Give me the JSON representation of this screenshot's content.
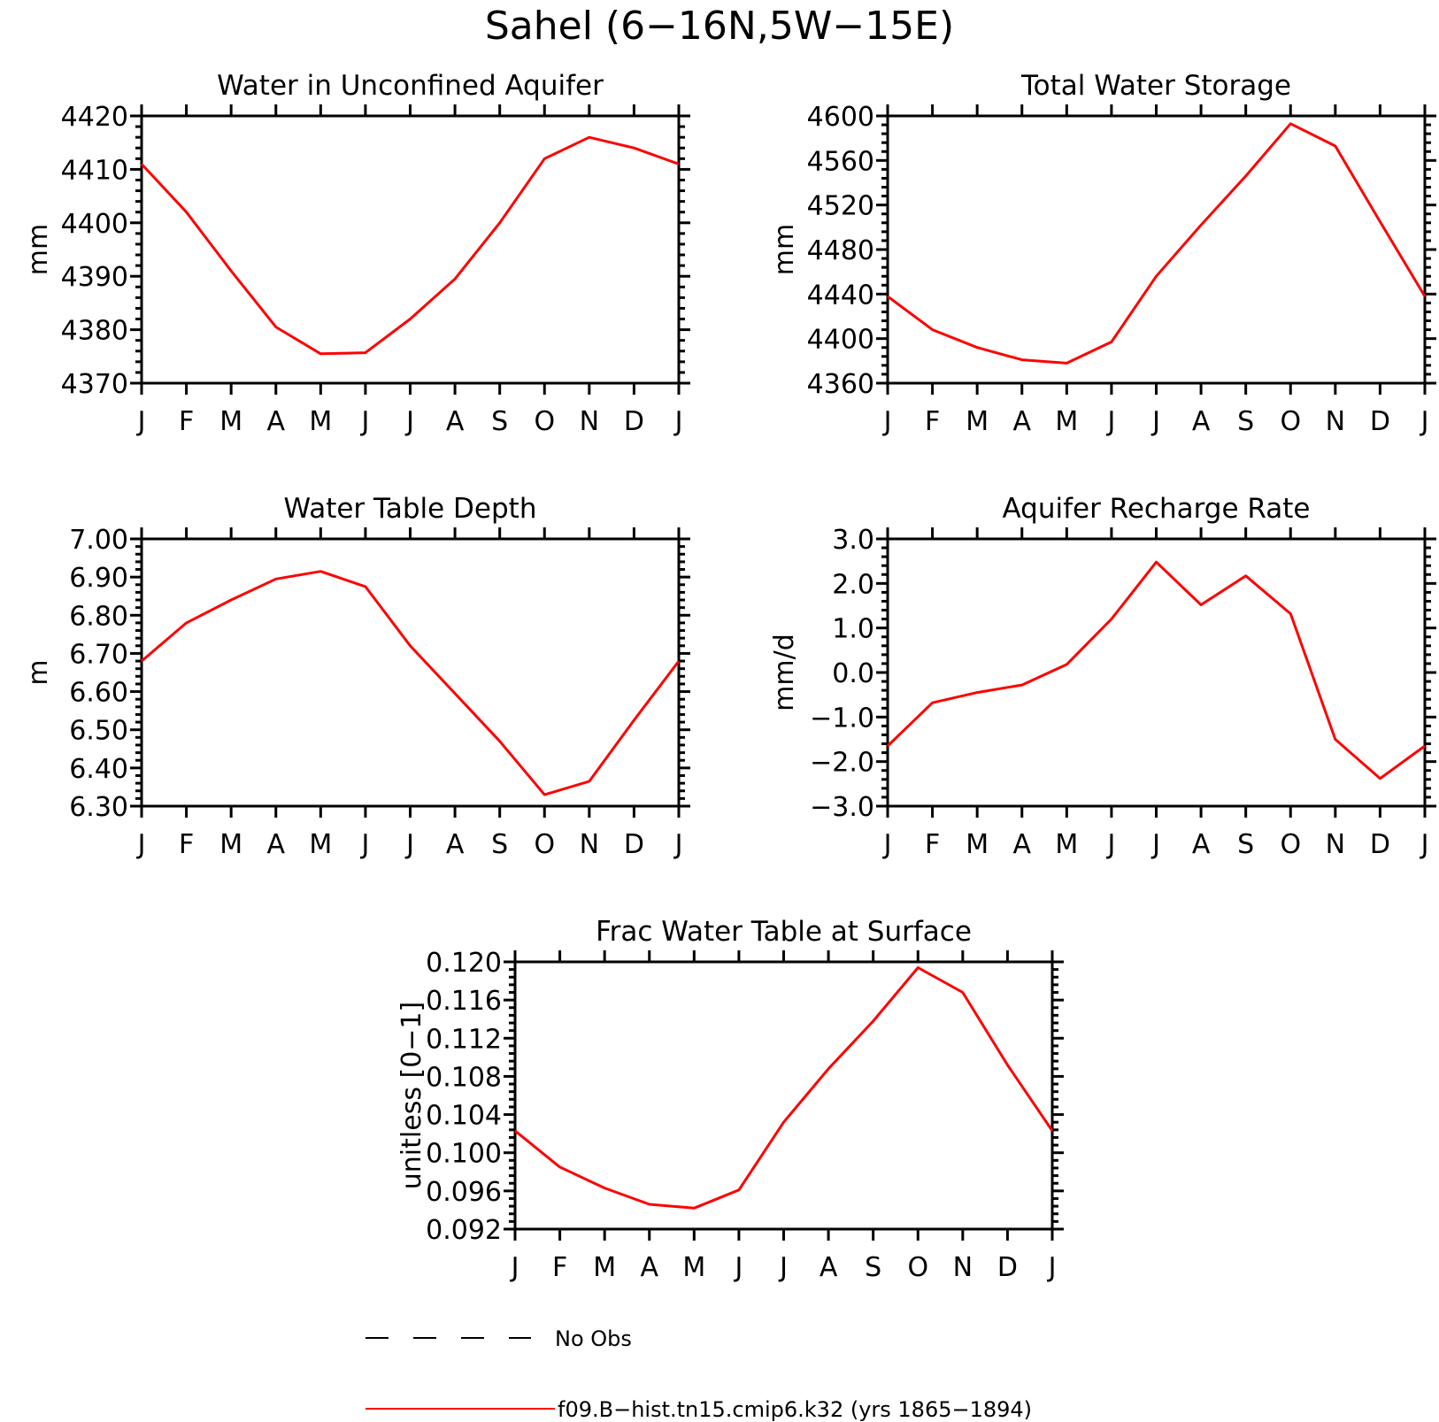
{
  "figure_title": "Sahel (6−16N,5W−15E)",
  "colors": {
    "model_line": "#ff0000",
    "obs_line": "#000000"
  },
  "legend": {
    "placement": "bottom-center",
    "entries": [
      {
        "label": "No Obs",
        "style": "dashed",
        "color": "#000000"
      },
      {
        "label": "f09.B−hist.tn15.cmip6.k32 (yrs 1865−1894)",
        "style": "solid",
        "color": "#ff0000"
      }
    ]
  },
  "chart_data": [
    {
      "type": "line",
      "title": "Water in Unconfined Aquifer",
      "xlabel": "",
      "ylabel": "mm",
      "categories": [
        "J",
        "F",
        "M",
        "A",
        "M",
        "J",
        "J",
        "A",
        "S",
        "O",
        "N",
        "D",
        "J"
      ],
      "ylim": [
        4370,
        4420
      ],
      "yticks": [
        "4420",
        "4410",
        "4400",
        "4390",
        "4380",
        "4370"
      ],
      "grid": false,
      "series": [
        {
          "values": [
            4411,
            4402,
            4391,
            4380.5,
            4375.5,
            4375.7,
            4382,
            4389.5,
            4400,
            4412,
            4416,
            4414,
            4411
          ]
        }
      ]
    },
    {
      "type": "line",
      "title": "Total Water Storage",
      "xlabel": "",
      "ylabel": "mm",
      "categories": [
        "J",
        "F",
        "M",
        "A",
        "M",
        "J",
        "J",
        "A",
        "S",
        "O",
        "N",
        "D",
        "J"
      ],
      "ylim": [
        4360,
        4600
      ],
      "yticks": [
        "4600",
        "4560",
        "4520",
        "4480",
        "4440",
        "4400",
        "4360"
      ],
      "grid": false,
      "series": [
        {
          "values": [
            4438,
            4408,
            4392,
            4381,
            4378,
            4397,
            4456,
            4502,
            4546,
            4593,
            4573,
            4505,
            4438
          ]
        }
      ]
    },
    {
      "type": "line",
      "title": "Water Table Depth",
      "xlabel": "",
      "ylabel": "m",
      "categories": [
        "J",
        "F",
        "M",
        "A",
        "M",
        "J",
        "J",
        "A",
        "S",
        "O",
        "N",
        "D",
        "J"
      ],
      "ylim": [
        6.3,
        7.0
      ],
      "yticks": [
        "7.00",
        "6.90",
        "6.80",
        "6.70",
        "6.60",
        "6.50",
        "6.40",
        "6.30"
      ],
      "grid": false,
      "series": [
        {
          "values": [
            6.68,
            6.78,
            6.84,
            6.895,
            6.915,
            6.875,
            6.72,
            6.595,
            6.47,
            6.33,
            6.365,
            6.525,
            6.68
          ]
        }
      ]
    },
    {
      "type": "line",
      "title": "Aquifer Recharge Rate",
      "xlabel": "",
      "ylabel": "mm/d",
      "categories": [
        "J",
        "F",
        "M",
        "A",
        "M",
        "J",
        "J",
        "A",
        "S",
        "O",
        "N",
        "D",
        "J"
      ],
      "ylim": [
        -3.0,
        3.0
      ],
      "yticks": [
        "3.0",
        "2.0",
        "1.0",
        "0.0",
        "−1.0",
        "−2.0",
        "−3.0"
      ],
      "grid": false,
      "series": [
        {
          "values": [
            -1.65,
            -0.68,
            -0.45,
            -0.28,
            0.18,
            1.2,
            2.48,
            1.52,
            2.17,
            1.32,
            -1.5,
            -2.38,
            -1.65
          ]
        }
      ]
    },
    {
      "type": "line",
      "title": "Frac Water Table at Surface",
      "xlabel": "",
      "ylabel": "unitless [0−1]",
      "categories": [
        "J",
        "F",
        "M",
        "A",
        "M",
        "J",
        "J",
        "A",
        "S",
        "O",
        "N",
        "D",
        "J"
      ],
      "ylim": [
        0.092,
        0.12
      ],
      "yticks": [
        "0.120",
        "0.116",
        "0.112",
        "0.108",
        "0.104",
        "0.100",
        "0.096",
        "0.092"
      ],
      "grid": false,
      "series": [
        {
          "values": [
            0.1023,
            0.0985,
            0.0963,
            0.0946,
            0.0942,
            0.0961,
            0.1032,
            0.1088,
            0.1138,
            0.1194,
            0.1168,
            0.1092,
            0.1023
          ]
        }
      ]
    }
  ]
}
